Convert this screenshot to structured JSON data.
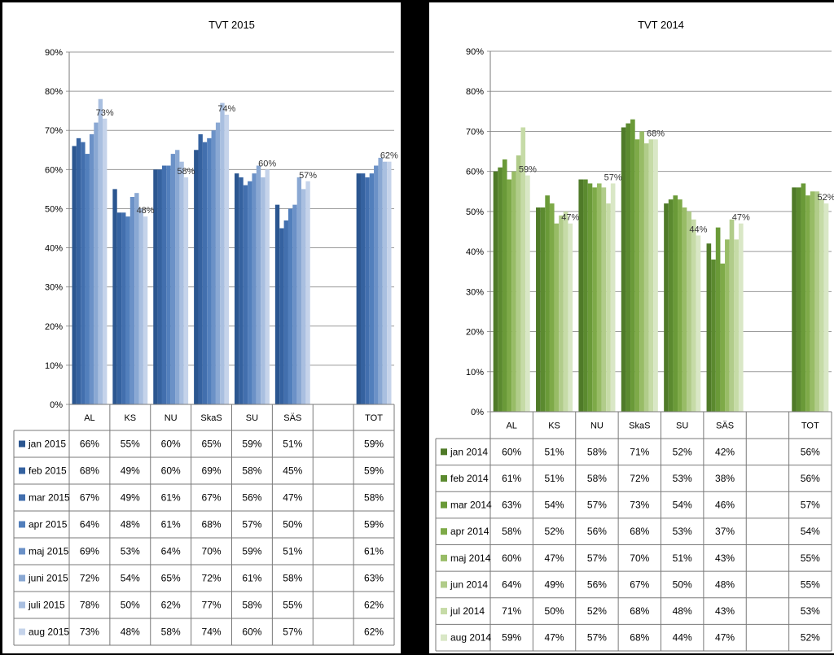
{
  "chart_data": [
    {
      "type": "bar",
      "title": "TVT 2015",
      "categories": [
        "AL",
        "KS",
        "NU",
        "SkaS",
        "SU",
        "SÄS",
        "",
        "TOT"
      ],
      "ylim": [
        0,
        90
      ],
      "yticks": [
        "0%",
        "10%",
        "20%",
        "30%",
        "40%",
        "50%",
        "60%",
        "70%",
        "80%",
        "90%"
      ],
      "grid": true,
      "legend": "data table",
      "annotation_series": 7,
      "series": [
        {
          "name": "jan 2015",
          "color": "#2b5690",
          "values": [
            66,
            55,
            60,
            65,
            59,
            51,
            null,
            59
          ],
          "labels": [
            "66%",
            "55%",
            "60%",
            "65%",
            "59%",
            "51%",
            "",
            "59%"
          ]
        },
        {
          "name": "feb 2015",
          "color": "#3562a0",
          "values": [
            68,
            49,
            60,
            69,
            58,
            45,
            null,
            59
          ],
          "labels": [
            "68%",
            "49%",
            "60%",
            "69%",
            "58%",
            "45%",
            "",
            "59%"
          ]
        },
        {
          "name": "mar 2015",
          "color": "#426fae",
          "values": [
            67,
            49,
            61,
            67,
            56,
            47,
            null,
            58
          ],
          "labels": [
            "67%",
            "49%",
            "61%",
            "67%",
            "56%",
            "47%",
            "",
            "58%"
          ]
        },
        {
          "name": "apr 2015",
          "color": "#527fbc",
          "values": [
            64,
            48,
            61,
            68,
            57,
            50,
            null,
            59
          ],
          "labels": [
            "64%",
            "48%",
            "61%",
            "68%",
            "57%",
            "50%",
            "",
            "59%"
          ]
        },
        {
          "name": "maj 2015",
          "color": "#6b91c7",
          "values": [
            69,
            53,
            64,
            70,
            59,
            51,
            null,
            61
          ],
          "labels": [
            "69%",
            "53%",
            "64%",
            "70%",
            "59%",
            "51%",
            "",
            "61%"
          ]
        },
        {
          "name": "juni 2015",
          "color": "#8aa8d3",
          "values": [
            72,
            54,
            65,
            72,
            61,
            58,
            null,
            63
          ],
          "labels": [
            "72%",
            "54%",
            "65%",
            "72%",
            "61%",
            "58%",
            "",
            "63%"
          ]
        },
        {
          "name": "juli 2015",
          "color": "#a9bfe0",
          "values": [
            78,
            50,
            62,
            77,
            58,
            55,
            null,
            62
          ],
          "labels": [
            "78%",
            "50%",
            "62%",
            "77%",
            "58%",
            "55%",
            "",
            "62%"
          ]
        },
        {
          "name": "aug 2015",
          "color": "#c5d3ea",
          "values": [
            73,
            48,
            58,
            74,
            60,
            57,
            null,
            62
          ],
          "labels": [
            "73%",
            "48%",
            "58%",
            "74%",
            "60%",
            "57%",
            "",
            "62%"
          ]
        }
      ]
    },
    {
      "type": "bar",
      "title": "TVT 2014",
      "categories": [
        "AL",
        "KS",
        "NU",
        "SkaS",
        "SU",
        "SÄS",
        "",
        "TOT"
      ],
      "ylim": [
        0,
        90
      ],
      "yticks": [
        "0%",
        "10%",
        "20%",
        "30%",
        "40%",
        "50%",
        "60%",
        "70%",
        "80%",
        "90%"
      ],
      "grid": true,
      "legend": "data table",
      "annotation_series": 7,
      "series": [
        {
          "name": "jan 2014",
          "color": "#4f7a28",
          "values": [
            60,
            51,
            58,
            71,
            52,
            42,
            null,
            56
          ],
          "labels": [
            "60%",
            "51%",
            "58%",
            "71%",
            "52%",
            "42%",
            "",
            "56%"
          ]
        },
        {
          "name": "feb 2014",
          "color": "#5b8a2f",
          "values": [
            61,
            51,
            58,
            72,
            53,
            38,
            null,
            56
          ],
          "labels": [
            "61%",
            "51%",
            "58%",
            "72%",
            "53%",
            "38%",
            "",
            "56%"
          ]
        },
        {
          "name": "mar 2014",
          "color": "#6a9a38",
          "values": [
            63,
            54,
            57,
            73,
            54,
            46,
            null,
            57
          ],
          "labels": [
            "63%",
            "54%",
            "57%",
            "73%",
            "54%",
            "46%",
            "",
            "57%"
          ]
        },
        {
          "name": "apr 2014",
          "color": "#7eaa48",
          "values": [
            58,
            52,
            56,
            68,
            53,
            37,
            null,
            54
          ],
          "labels": [
            "58%",
            "52%",
            "56%",
            "68%",
            "53%",
            "37%",
            "",
            "54%"
          ]
        },
        {
          "name": "maj 2014",
          "color": "#98bc66",
          "values": [
            60,
            47,
            57,
            70,
            51,
            43,
            null,
            55
          ],
          "labels": [
            "60%",
            "47%",
            "57%",
            "70%",
            "51%",
            "43%",
            "",
            "55%"
          ]
        },
        {
          "name": "jun 2014",
          "color": "#b1cc8a",
          "values": [
            64,
            49,
            56,
            67,
            50,
            48,
            null,
            55
          ],
          "labels": [
            "64%",
            "49%",
            "56%",
            "67%",
            "50%",
            "48%",
            "",
            "55%"
          ]
        },
        {
          "name": "jul 2014",
          "color": "#c6dba7",
          "values": [
            71,
            50,
            52,
            68,
            48,
            43,
            null,
            53
          ],
          "labels": [
            "71%",
            "50%",
            "52%",
            "68%",
            "48%",
            "43%",
            "",
            "53%"
          ]
        },
        {
          "name": "aug 2014",
          "color": "#d9e7c6",
          "values": [
            59,
            47,
            57,
            68,
            44,
            47,
            null,
            52
          ],
          "labels": [
            "59%",
            "47%",
            "57%",
            "68%",
            "44%",
            "47%",
            "",
            "52%"
          ]
        }
      ]
    }
  ]
}
